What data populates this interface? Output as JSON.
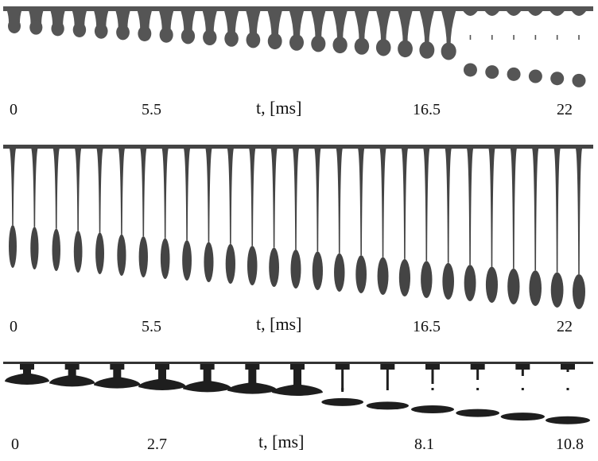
{
  "panels": [
    {
      "time_labels": [
        "0",
        "5.5",
        "16.5",
        "22"
      ],
      "axis_label": "t, [ms]",
      "frame_count": 27,
      "description_kind": "pendant-drop-pinch-off"
    },
    {
      "time_labels": [
        "0",
        "5.5",
        "16.5",
        "22"
      ],
      "axis_label": "t, [ms]",
      "frame_count": 27,
      "description_kind": "filament-stretching"
    },
    {
      "time_labels": [
        "0",
        "2.7",
        "8.1",
        "10.8"
      ],
      "axis_label": "t, [ms]",
      "frame_count": 13,
      "description_kind": "sheet-detachment"
    }
  ],
  "colors": {
    "fluid_top": "#555555",
    "fluid_mid": "#444444",
    "fluid_bottom": "#1e1e1e",
    "text": "#111111"
  }
}
